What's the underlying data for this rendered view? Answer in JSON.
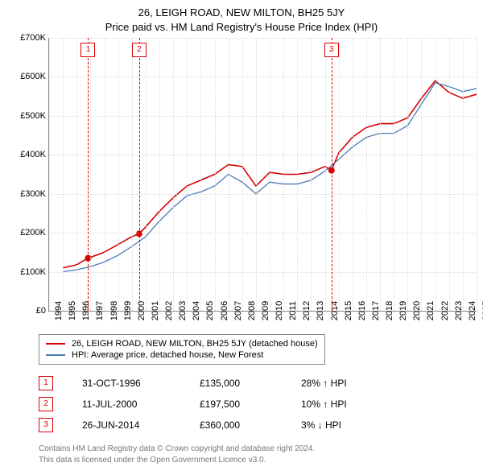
{
  "header": {
    "title": "26, LEIGH ROAD, NEW MILTON, BH25 5JY",
    "subtitle": "Price paid vs. HM Land Registry's House Price Index (HPI)"
  },
  "chart": {
    "type": "line",
    "background_color": "#ffffff",
    "grid_color": "#dcdcdc",
    "axis_color": "#888888",
    "xlim": [
      1994,
      2025
    ],
    "ylim": [
      0,
      700000
    ],
    "yticks": [
      0,
      100000,
      200000,
      300000,
      400000,
      500000,
      600000,
      700000
    ],
    "ytick_labels": [
      "£0",
      "£100K",
      "£200K",
      "£300K",
      "£400K",
      "£500K",
      "£600K",
      "£700K"
    ],
    "xticks": [
      1994,
      1995,
      1996,
      1997,
      1998,
      1999,
      2000,
      2001,
      2002,
      2003,
      2004,
      2005,
      2006,
      2007,
      2008,
      2009,
      2010,
      2011,
      2012,
      2013,
      2014,
      2015,
      2016,
      2017,
      2018,
      2019,
      2020,
      2021,
      2022,
      2023,
      2024,
      2025
    ],
    "tick_fontsize": 11,
    "marker_color": "#d60000",
    "markers": [
      {
        "label": "1",
        "x": 1996.83
      },
      {
        "label": "2",
        "x": 2000.53
      },
      {
        "label": "3",
        "x": 2014.48
      }
    ],
    "series": [
      {
        "name": "property",
        "label": "26, LEIGH ROAD, NEW MILTON, BH25 5JY (detached house)",
        "color": "#d60000",
        "line_width": 1.6,
        "data": [
          [
            1995.0,
            110000
          ],
          [
            1996.0,
            118000
          ],
          [
            1996.83,
            135000
          ],
          [
            1998.0,
            150000
          ],
          [
            1999.0,
            170000
          ],
          [
            2000.0,
            190000
          ],
          [
            2000.53,
            197500
          ],
          [
            2001.0,
            215000
          ],
          [
            2002.0,
            255000
          ],
          [
            2003.0,
            290000
          ],
          [
            2004.0,
            320000
          ],
          [
            2005.0,
            335000
          ],
          [
            2006.0,
            350000
          ],
          [
            2007.0,
            375000
          ],
          [
            2008.0,
            370000
          ],
          [
            2009.0,
            320000
          ],
          [
            2010.0,
            355000
          ],
          [
            2011.0,
            350000
          ],
          [
            2012.0,
            350000
          ],
          [
            2013.0,
            355000
          ],
          [
            2014.0,
            370000
          ],
          [
            2014.48,
            360000
          ],
          [
            2015.0,
            405000
          ],
          [
            2016.0,
            445000
          ],
          [
            2017.0,
            470000
          ],
          [
            2018.0,
            480000
          ],
          [
            2019.0,
            480000
          ],
          [
            2020.0,
            495000
          ],
          [
            2021.0,
            545000
          ],
          [
            2022.0,
            590000
          ],
          [
            2023.0,
            560000
          ],
          [
            2024.0,
            545000
          ],
          [
            2025.0,
            555000
          ]
        ],
        "points": [
          {
            "x": 1996.83,
            "y": 135000
          },
          {
            "x": 2000.53,
            "y": 197500
          },
          {
            "x": 2014.48,
            "y": 360000
          }
        ]
      },
      {
        "name": "hpi",
        "label": "HPI: Average price, detached house, New Forest",
        "color": "#4a7ab5",
        "line_width": 1.3,
        "data": [
          [
            1995.0,
            100000
          ],
          [
            1996.0,
            105000
          ],
          [
            1997.0,
            113000
          ],
          [
            1998.0,
            125000
          ],
          [
            1999.0,
            142000
          ],
          [
            2000.0,
            165000
          ],
          [
            2001.0,
            190000
          ],
          [
            2002.0,
            230000
          ],
          [
            2003.0,
            265000
          ],
          [
            2004.0,
            295000
          ],
          [
            2005.0,
            305000
          ],
          [
            2006.0,
            320000
          ],
          [
            2007.0,
            350000
          ],
          [
            2008.0,
            330000
          ],
          [
            2009.0,
            300000
          ],
          [
            2010.0,
            330000
          ],
          [
            2011.0,
            325000
          ],
          [
            2012.0,
            325000
          ],
          [
            2013.0,
            335000
          ],
          [
            2014.0,
            358000
          ],
          [
            2015.0,
            388000
          ],
          [
            2016.0,
            420000
          ],
          [
            2017.0,
            445000
          ],
          [
            2018.0,
            455000
          ],
          [
            2019.0,
            455000
          ],
          [
            2020.0,
            475000
          ],
          [
            2021.0,
            530000
          ],
          [
            2022.0,
            585000
          ],
          [
            2023.0,
            575000
          ],
          [
            2024.0,
            562000
          ],
          [
            2025.0,
            570000
          ]
        ]
      }
    ]
  },
  "legend": {
    "border_color": "#888888"
  },
  "sales": [
    {
      "badge": "1",
      "date": "31-OCT-1996",
      "price": "£135,000",
      "delta": "28% ↑ HPI"
    },
    {
      "badge": "2",
      "date": "11-JUL-2000",
      "price": "£197,500",
      "delta": "10% ↑ HPI"
    },
    {
      "badge": "3",
      "date": "26-JUN-2014",
      "price": "£360,000",
      "delta": "3% ↓ HPI"
    }
  ],
  "footer": {
    "line1": "Contains HM Land Registry data © Crown copyright and database right 2024.",
    "line2": "This data is licensed under the Open Government Licence v3.0."
  }
}
